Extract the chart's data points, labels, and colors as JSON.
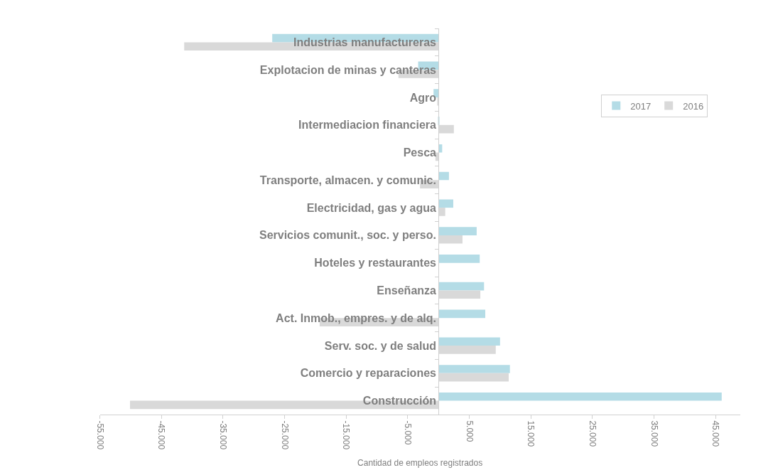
{
  "chart_data": {
    "type": "bar",
    "orientation": "horizontal",
    "xlabel": "Cantidad de empleos registrados",
    "categories": [
      "Industrias manufactureras",
      "Explotacion de minas y canteras",
      "Agro",
      "Intermediacion financiera",
      "Pesca",
      "Transporte, almacen. y comunic.",
      "Electricidad, gas y agua",
      "Servicios comunit., soc. y perso.",
      "Hoteles y restaurantes",
      "Enseñanza",
      "Act. Inmob., empres. y de alq.",
      "Serv. soc. y de salud",
      "Comercio y reparaciones",
      "Construcción"
    ],
    "series": [
      {
        "name": "2017",
        "color": "#b4dce6",
        "values": [
          -27000,
          -3300,
          -800,
          100,
          600,
          1700,
          2400,
          6200,
          6700,
          7400,
          7600,
          10000,
          11600,
          46000
        ]
      },
      {
        "name": "2016",
        "color": "#d9d9d9",
        "values": [
          -41300,
          -6500,
          -200,
          2500,
          -500,
          -3000,
          1100,
          3900,
          null,
          6800,
          -19300,
          9300,
          11400,
          -50100
        ]
      }
    ],
    "xlim": [
      -55000,
      49000
    ],
    "xticks": [
      {
        "value": -55000,
        "label": "-55.000"
      },
      {
        "value": -45000,
        "label": "-45.000"
      },
      {
        "value": -35000,
        "label": "-35.000"
      },
      {
        "value": -25000,
        "label": "-25.000"
      },
      {
        "value": -15000,
        "label": "-15.000"
      },
      {
        "value": -5000,
        "label": "-5.000"
      },
      {
        "value": 5000,
        "label": "5.000"
      },
      {
        "value": 15000,
        "label": "15.000"
      },
      {
        "value": 25000,
        "label": "25.000"
      },
      {
        "value": 35000,
        "label": "35.000"
      },
      {
        "value": 45000,
        "label": "45.000"
      }
    ],
    "legend": "right"
  }
}
